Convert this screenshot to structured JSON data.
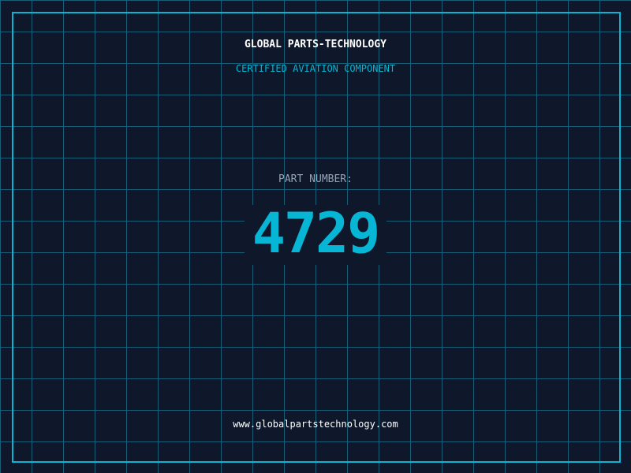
{
  "header": {
    "company": "GLOBAL PARTS-TECHNOLOGY",
    "subtitle": "CERTIFIED AVIATION COMPONENT"
  },
  "part": {
    "label": "PART NUMBER:",
    "number": "4729"
  },
  "footer": {
    "url": "www.globalpartstechnology.com"
  },
  "colors": {
    "background": "#0f172a",
    "accent": "#06b6d4",
    "grid": "#155e75"
  }
}
